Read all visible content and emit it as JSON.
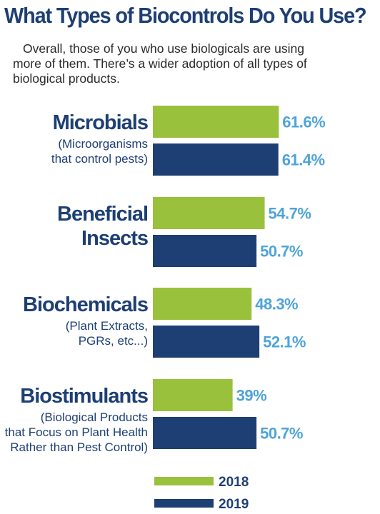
{
  "title": "What Types of Biocontrols Do You Use?",
  "subtitle_lines": [
    "Overall, those of you who use biologicals are using",
    "more of them. There’s a wider adoption of all types of",
    "biological products."
  ],
  "colors": {
    "series_2018": "#99c13c",
    "series_2019": "#1d3f73",
    "value_text": "#4ea4d9",
    "heading": "#1d3f73"
  },
  "chart_data": {
    "type": "bar",
    "orientation": "horizontal",
    "categories": [
      "Microbials",
      "Beneficial Insects",
      "Biochemicals",
      "Biostimulants"
    ],
    "category_label_lines": [
      [
        "Microbials"
      ],
      [
        "Beneficial",
        "Insects"
      ],
      [
        "Biochemicals"
      ],
      [
        "Biostimulants"
      ]
    ],
    "category_descriptions": [
      [
        "(Microorganisms",
        "that control pests)"
      ],
      [],
      [
        "(Plant Extracts,",
        "PGRs, etc...)"
      ],
      [
        "(Biological Products",
        "that Focus on Plant Health",
        "Rather than Pest Control)"
      ]
    ],
    "series": [
      {
        "name": "2018",
        "values": [
          61.6,
          54.7,
          48.3,
          39
        ],
        "labels": [
          "61.6%",
          "54.7%",
          "48.3%",
          "39%"
        ]
      },
      {
        "name": "2019",
        "values": [
          61.4,
          50.7,
          52.1,
          50.7
        ],
        "labels": [
          "61.4%",
          "50.7%",
          "52.1%",
          "50.7%"
        ]
      }
    ],
    "legend": [
      "2018",
      "2019"
    ],
    "legend_position": "bottom",
    "grid": false
  }
}
